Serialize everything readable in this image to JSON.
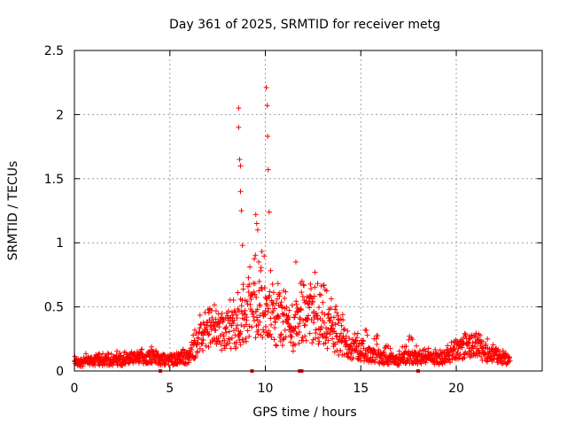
{
  "chart_data": {
    "type": "scatter",
    "title": "Day 361 of 2025, SRMTID for receiver metg",
    "xlabel": "GPS time / hours",
    "ylabel": "SRMTID / TECUs",
    "xlim": [
      0,
      24.5
    ],
    "ylim": [
      0,
      2.5
    ],
    "xticks": [
      0,
      5,
      10,
      15,
      20
    ],
    "xtick_labels": [
      "0",
      "5",
      "10",
      "15",
      "20"
    ],
    "yticks": [
      0,
      0.5,
      1,
      1.5,
      2,
      2.5
    ],
    "ytick_labels": [
      "0",
      "0.5",
      "1",
      "1.5",
      "2",
      "2.5"
    ],
    "grid": true,
    "marker": "+",
    "color": "#ff0000",
    "series": [
      {
        "name": "SRMTID",
        "note": "envelope of plotted points, hourly-ish samples [hour, approx typical value, approx max]",
        "profile": [
          [
            0.0,
            0.07,
            0.13
          ],
          [
            1.0,
            0.08,
            0.14
          ],
          [
            2.0,
            0.08,
            0.16
          ],
          [
            3.0,
            0.09,
            0.15
          ],
          [
            4.0,
            0.12,
            0.2
          ],
          [
            4.5,
            0.09,
            0.13
          ],
          [
            5.0,
            0.09,
            0.15
          ],
          [
            5.5,
            0.1,
            0.16
          ],
          [
            6.0,
            0.11,
            0.2
          ],
          [
            6.5,
            0.25,
            0.45
          ],
          [
            7.0,
            0.3,
            0.55
          ],
          [
            7.5,
            0.32,
            0.5
          ],
          [
            8.0,
            0.33,
            0.52
          ],
          [
            8.5,
            0.35,
            0.65
          ],
          [
            9.0,
            0.45,
            0.75
          ],
          [
            9.5,
            0.5,
            1.0
          ],
          [
            10.0,
            0.5,
            0.9
          ],
          [
            10.5,
            0.4,
            0.7
          ],
          [
            11.0,
            0.35,
            0.65
          ],
          [
            11.5,
            0.3,
            0.55
          ],
          [
            12.0,
            0.42,
            0.75
          ],
          [
            12.5,
            0.42,
            0.72
          ],
          [
            13.0,
            0.38,
            0.7
          ],
          [
            13.5,
            0.3,
            0.55
          ],
          [
            14.0,
            0.22,
            0.45
          ],
          [
            14.5,
            0.18,
            0.35
          ],
          [
            15.0,
            0.16,
            0.3
          ],
          [
            15.5,
            0.13,
            0.38
          ],
          [
            16.0,
            0.1,
            0.25
          ],
          [
            16.5,
            0.09,
            0.2
          ],
          [
            17.0,
            0.08,
            0.15
          ],
          [
            17.5,
            0.12,
            0.32
          ],
          [
            18.0,
            0.1,
            0.18
          ],
          [
            18.5,
            0.1,
            0.18
          ],
          [
            19.0,
            0.1,
            0.17
          ],
          [
            19.5,
            0.12,
            0.2
          ],
          [
            20.0,
            0.16,
            0.26
          ],
          [
            20.5,
            0.2,
            0.3
          ],
          [
            21.0,
            0.2,
            0.34
          ],
          [
            21.5,
            0.15,
            0.26
          ],
          [
            22.0,
            0.13,
            0.22
          ],
          [
            22.5,
            0.1,
            0.16
          ],
          [
            22.8,
            0.08,
            0.12
          ]
        ],
        "outliers": [
          [
            8.6,
            2.05
          ],
          [
            8.6,
            1.9
          ],
          [
            8.65,
            1.65
          ],
          [
            8.7,
            1.6
          ],
          [
            8.7,
            1.4
          ],
          [
            8.75,
            1.25
          ],
          [
            8.8,
            0.98
          ],
          [
            9.5,
            1.22
          ],
          [
            9.55,
            1.15
          ],
          [
            9.6,
            1.1
          ],
          [
            9.65,
            0.85
          ],
          [
            10.05,
            2.21
          ],
          [
            10.1,
            2.07
          ],
          [
            10.12,
            1.83
          ],
          [
            10.15,
            1.57
          ],
          [
            10.2,
            1.24
          ],
          [
            11.6,
            0.85
          ],
          [
            12.6,
            0.77
          ]
        ],
        "zero_points": [
          4.5,
          9.3,
          11.8,
          11.9,
          18.0
        ]
      }
    ]
  }
}
